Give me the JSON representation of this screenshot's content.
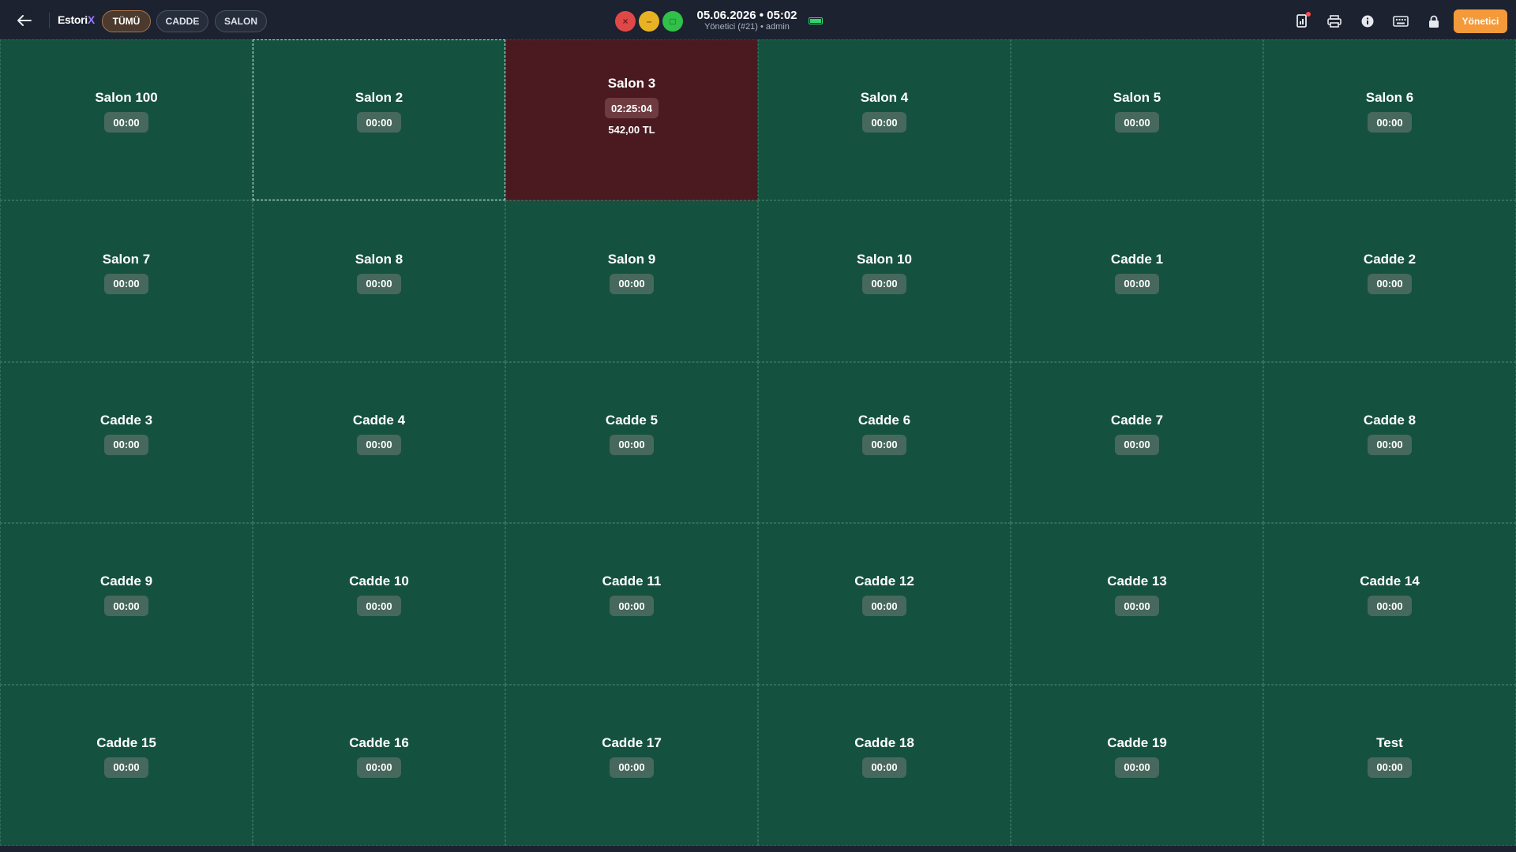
{
  "topbar": {
    "brand_main": "Estori",
    "brand_accent": "X",
    "filters": [
      {
        "label": "TÜMÜ",
        "active": true
      },
      {
        "label": "CADDE",
        "active": false
      },
      {
        "label": "SALON",
        "active": false
      }
    ],
    "window_controls": {
      "close": "×",
      "minimize": "–",
      "maximize": "□"
    },
    "datetime": "05.06.2026 • 05:02",
    "user_line": "Yönetici (#21) • admin",
    "icons": [
      "back-arrow-icon",
      "report-icon",
      "printer-icon",
      "info-icon",
      "keyboard-icon",
      "lock-icon"
    ],
    "role_button": "Yönetici"
  },
  "colors": {
    "background": "#1c2230",
    "table_free": "#15513f",
    "table_occupied": "#4a1a20",
    "accent": "#f49a3a",
    "active_filter": "#4b3a2d"
  },
  "tables": [
    {
      "name": "Salon 100",
      "time": "00:00"
    },
    {
      "name": "Salon 2",
      "time": "00:00",
      "selected": true
    },
    {
      "name": "Salon 3",
      "time": "02:25:04",
      "amount": "542,00 TL",
      "occupied": true
    },
    {
      "name": "Salon 4",
      "time": "00:00"
    },
    {
      "name": "Salon 5",
      "time": "00:00"
    },
    {
      "name": "Salon 6",
      "time": "00:00"
    },
    {
      "name": "Salon 7",
      "time": "00:00"
    },
    {
      "name": "Salon 8",
      "time": "00:00"
    },
    {
      "name": "Salon 9",
      "time": "00:00"
    },
    {
      "name": "Salon 10",
      "time": "00:00"
    },
    {
      "name": "Cadde 1",
      "time": "00:00"
    },
    {
      "name": "Cadde 2",
      "time": "00:00"
    },
    {
      "name": "Cadde 3",
      "time": "00:00"
    },
    {
      "name": "Cadde 4",
      "time": "00:00"
    },
    {
      "name": "Cadde 5",
      "time": "00:00"
    },
    {
      "name": "Cadde 6",
      "time": "00:00"
    },
    {
      "name": "Cadde 7",
      "time": "00:00"
    },
    {
      "name": "Cadde 8",
      "time": "00:00"
    },
    {
      "name": "Cadde 9",
      "time": "00:00"
    },
    {
      "name": "Cadde 10",
      "time": "00:00"
    },
    {
      "name": "Cadde 11",
      "time": "00:00"
    },
    {
      "name": "Cadde 12",
      "time": "00:00"
    },
    {
      "name": "Cadde 13",
      "time": "00:00"
    },
    {
      "name": "Cadde 14",
      "time": "00:00"
    },
    {
      "name": "Cadde 15",
      "time": "00:00"
    },
    {
      "name": "Cadde 16",
      "time": "00:00"
    },
    {
      "name": "Cadde 17",
      "time": "00:00"
    },
    {
      "name": "Cadde 18",
      "time": "00:00"
    },
    {
      "name": "Cadde 19",
      "time": "00:00"
    },
    {
      "name": "Test",
      "time": "00:00"
    }
  ]
}
